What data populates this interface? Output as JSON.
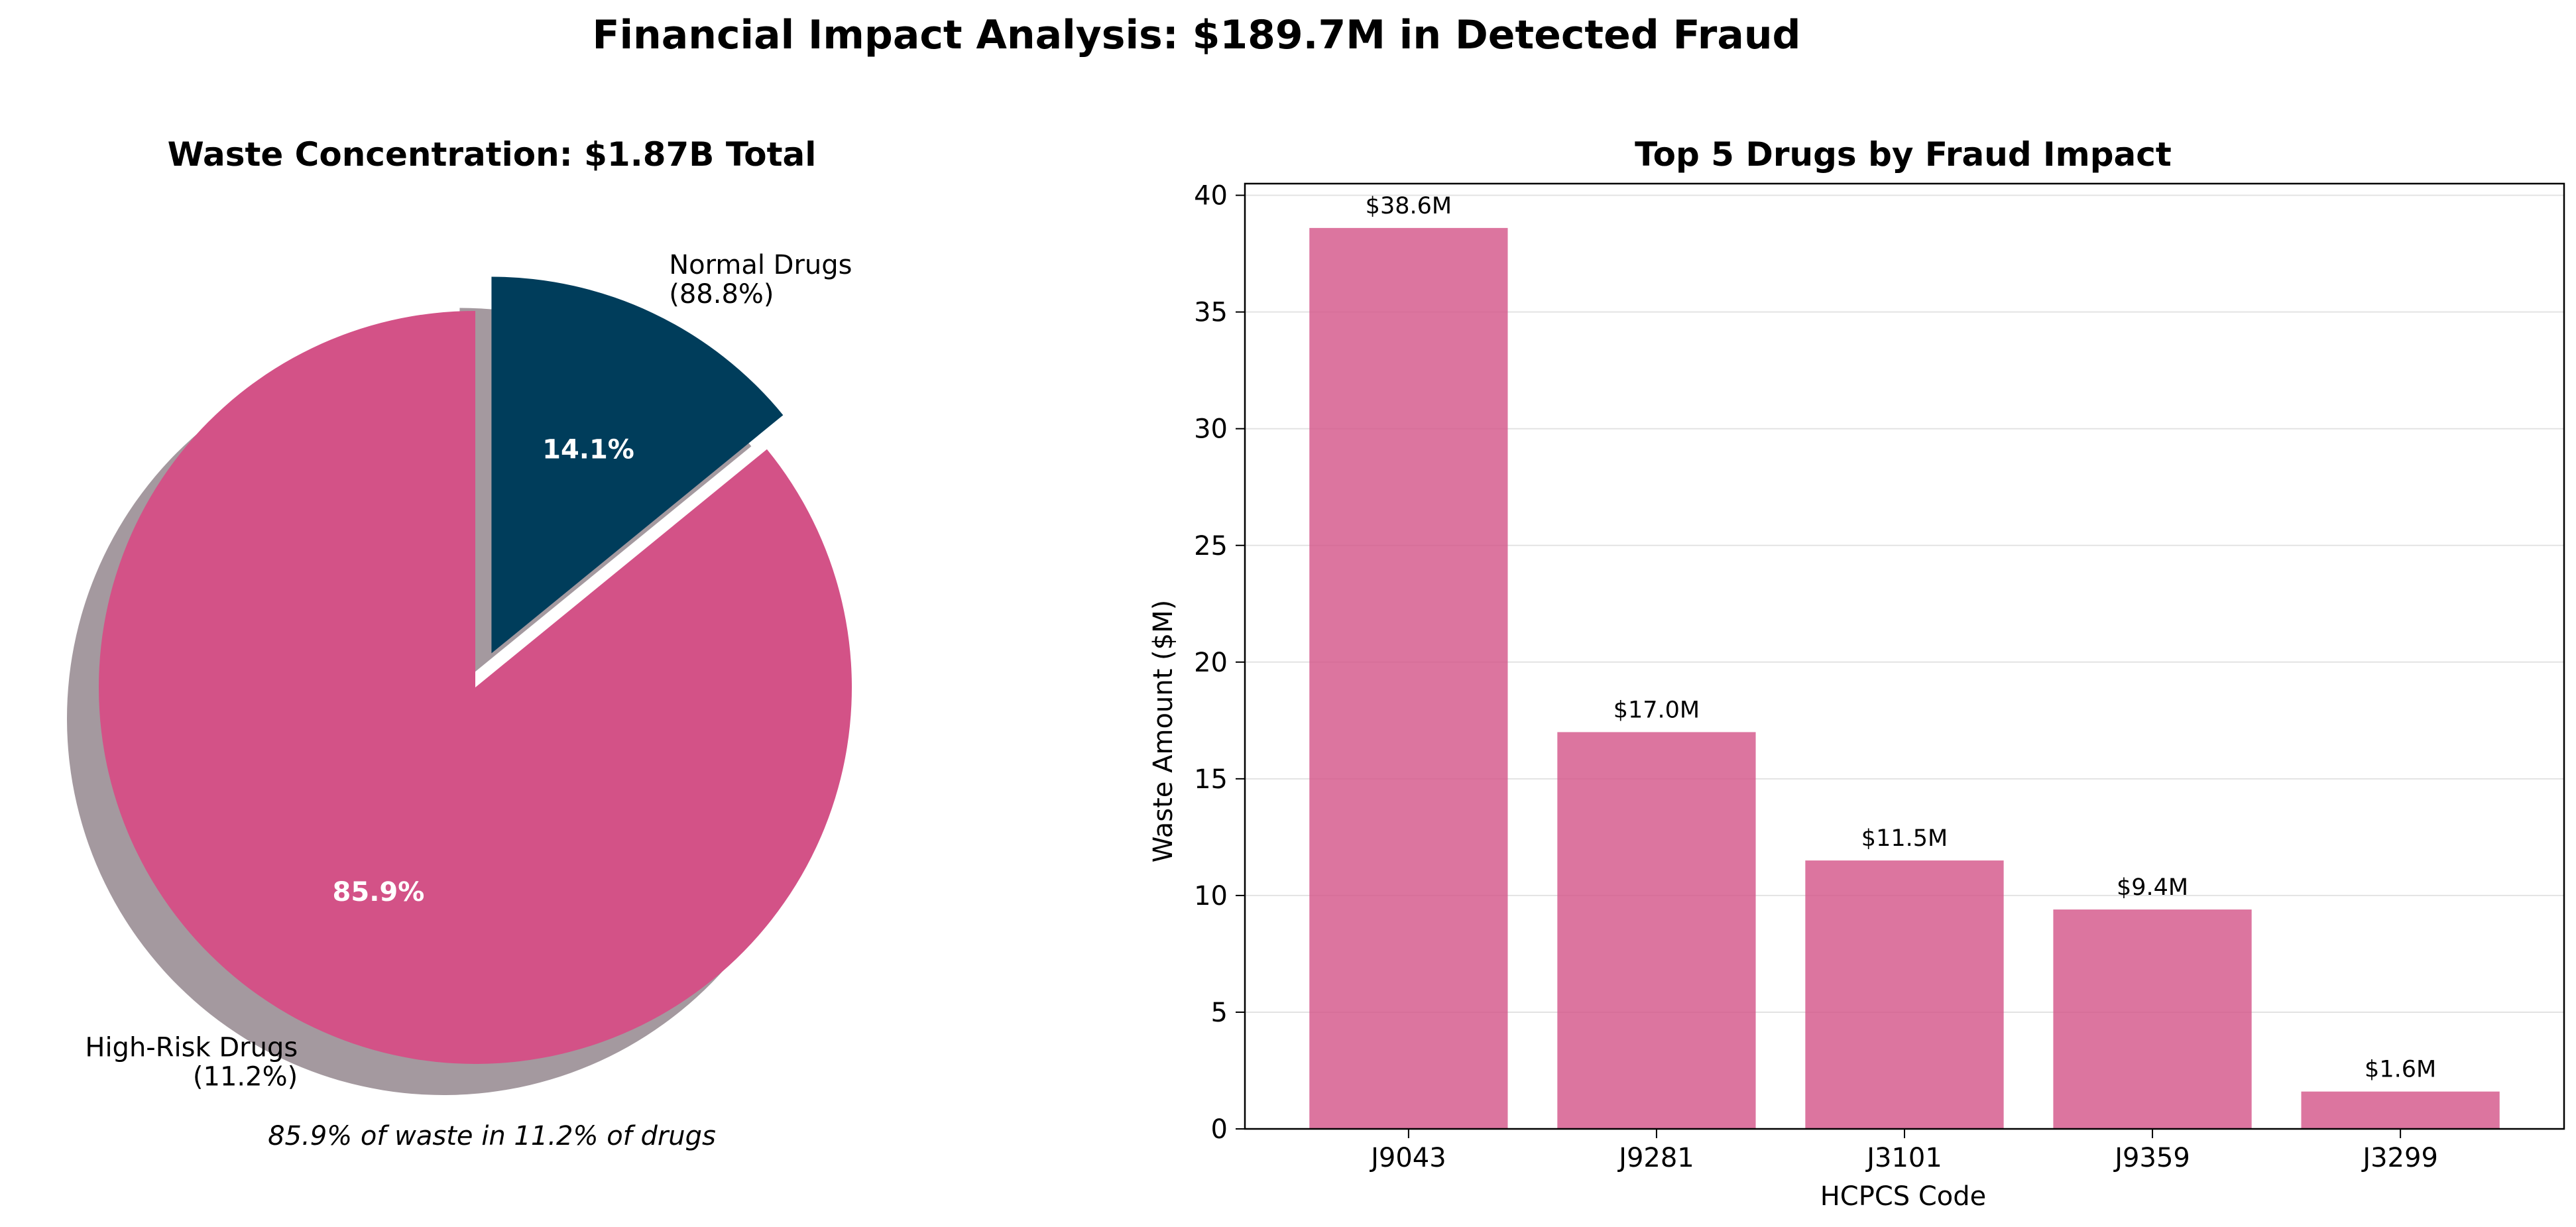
{
  "title": "Financial Impact Analysis: $189.7M in Detected Fraud",
  "chart_data": [
    {
      "type": "pie",
      "title": "Waste Concentration: $1.87B Total",
      "slices": [
        {
          "label": "High-Risk Drugs\n(11.2%)",
          "value": 85.9,
          "pct_label": "85.9%",
          "color": "#d35287",
          "exploded": false
        },
        {
          "label": "Normal Drugs\n(88.8%)",
          "value": 14.1,
          "pct_label": "14.1%",
          "color": "#003d5b",
          "exploded": true
        }
      ],
      "start_angle": 90,
      "shadow": true,
      "annotation": "85.9% of waste in 11.2% of drugs"
    },
    {
      "type": "bar",
      "title": "Top 5 Drugs by Fraud Impact",
      "categories": [
        "J9043",
        "J9281",
        "J3101",
        "J9359",
        "J3299"
      ],
      "values": [
        38.6,
        17.0,
        11.5,
        9.4,
        1.6
      ],
      "data_labels": [
        "$38.6M",
        "$17.0M",
        "$11.5M",
        "$9.4M",
        "$1.6M"
      ],
      "xlabel": "HCPCS Code",
      "ylabel": "Waste Amount ($M)",
      "ylim": [
        0,
        40.5
      ],
      "yticks": [
        0,
        5,
        10,
        15,
        20,
        25,
        30,
        35,
        40
      ],
      "grid": "y",
      "color": "#d35287"
    }
  ]
}
